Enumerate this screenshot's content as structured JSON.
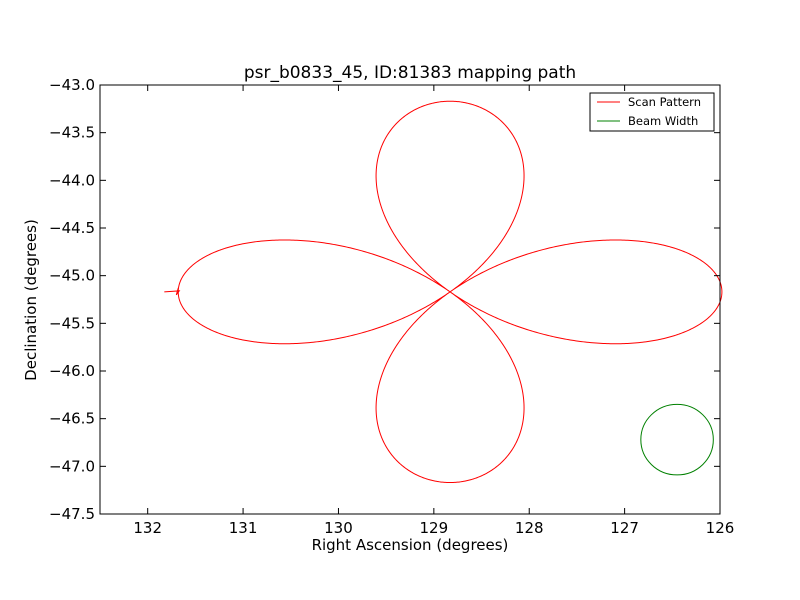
{
  "chart_data": {
    "type": "line",
    "title": "psr_b0833_45, ID:81383 mapping path",
    "xlabel": "Right Ascension (degrees)",
    "ylabel": "Declination (degrees)",
    "xlim": [
      132.5,
      126.0
    ],
    "ylim": [
      -47.5,
      -43.0
    ],
    "x_inverted": true,
    "xticks": [
      132,
      131,
      130,
      129,
      128,
      127,
      126
    ],
    "xtick_labels": [
      "132",
      "131",
      "130",
      "129",
      "128",
      "127",
      "126"
    ],
    "yticks": [
      -43.0,
      -43.5,
      -44.0,
      -44.5,
      -45.0,
      -45.5,
      -46.0,
      -46.5,
      -47.0,
      -47.5
    ],
    "ytick_labels": [
      "−43.0",
      "−43.5",
      "−44.0",
      "−44.5",
      "−45.0",
      "−45.5",
      "−46.0",
      "−46.5",
      "−47.0",
      "−47.5"
    ],
    "grid": false,
    "legend_position": "top-right",
    "series": [
      {
        "name": "Scan Pattern",
        "color": "#ff0000",
        "shape": "four-petal rose",
        "center": [
          128.83,
          -45.17
        ],
        "petal_extent_x": 2.85,
        "petal_extent_y": 2.0,
        "start": [
          131.7,
          -45.17
        ]
      },
      {
        "name": "Beam Width",
        "color": "#008000",
        "shape": "circle",
        "center": [
          126.45,
          -46.72
        ],
        "radius_x": 0.38,
        "radius_y": 0.37
      }
    ]
  }
}
